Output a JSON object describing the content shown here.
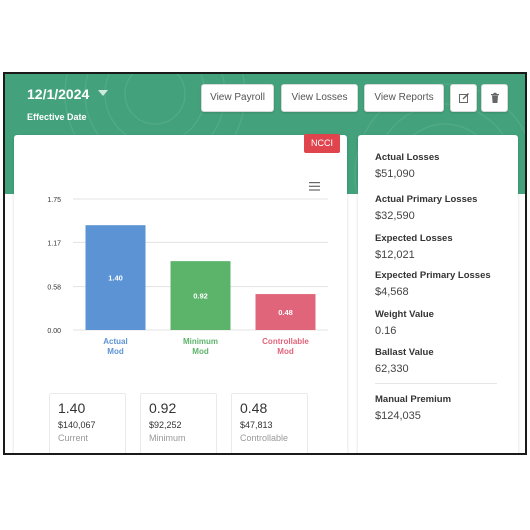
{
  "header": {
    "date": "12/1/2024",
    "date_label": "Effective Date",
    "buttons": {
      "view_payroll": "View Payroll",
      "view_losses": "View Losses",
      "view_reports": "View Reports"
    },
    "icons": [
      "edit-icon",
      "trash-icon"
    ]
  },
  "badge": "NCCI",
  "chart_data": {
    "type": "bar",
    "categories": [
      [
        "Actual",
        "Mod"
      ],
      [
        "Minimum",
        "Mod"
      ],
      [
        "Controllable",
        "Mod"
      ]
    ],
    "values": [
      1.4,
      0.92,
      0.48
    ],
    "value_labels": [
      "1.40",
      "0.92",
      "0.48"
    ],
    "colors": [
      "#5b93d5",
      "#5cb46b",
      "#e0647a"
    ],
    "ytick_labels": [
      "0.00",
      "0.58",
      "1.17",
      "1.75"
    ],
    "ytick_values": [
      0,
      0.58,
      1.17,
      1.75
    ],
    "ylim": [
      0,
      1.75
    ],
    "grid": true,
    "legend": "none"
  },
  "stats": [
    {
      "value": "1.40",
      "dollars": "$140,067",
      "label": "Current"
    },
    {
      "value": "0.92",
      "dollars": "$92,252",
      "label": "Minimum"
    },
    {
      "value": "0.48",
      "dollars": "$47,813",
      "label": "Controllable"
    }
  ],
  "metrics": {
    "actual_losses": {
      "label": "Actual Losses",
      "value": "$51,090"
    },
    "actual_primary_losses": {
      "label": "Actual Primary Losses",
      "value": "$32,590"
    },
    "expected_losses": {
      "label": "Expected Losses",
      "value": "$12,021"
    },
    "expected_primary_losses": {
      "label": "Expected Primary Losses",
      "value": "$4,568"
    },
    "weight_value": {
      "label": "Weight Value",
      "value": "0.16"
    },
    "ballast_value": {
      "label": "Ballast Value",
      "value": "62,330"
    },
    "manual_premium": {
      "label": "Manual Premium",
      "value": "$124,035"
    }
  },
  "colors": {
    "header_green": "#43a27c",
    "badge_red": "#e0444c"
  }
}
